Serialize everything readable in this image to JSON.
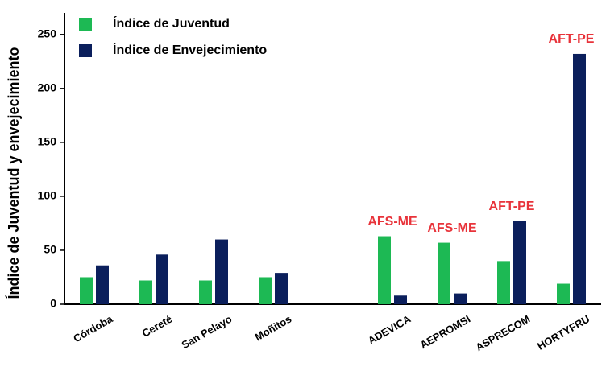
{
  "chart_data": {
    "type": "bar",
    "y_label": "Índice de Juventud y envejecimiento",
    "categories": [
      "Córdoba",
      "Cereté",
      "San Pelayo",
      "Moñitos",
      null,
      "ADEVICA",
      "AEPROMSI",
      "ASPRECOM",
      "HORTYFRU"
    ],
    "series": [
      {
        "name": "Índice de Juventud",
        "color": "#1db954",
        "values": [
          25,
          22,
          22,
          25,
          null,
          63,
          57,
          40,
          19
        ]
      },
      {
        "name": "Índice de Envejecimiento",
        "color": "#0b1f5c",
        "values": [
          36,
          46,
          60,
          29,
          null,
          8,
          10,
          77,
          232
        ]
      }
    ],
    "annotations": [
      null,
      null,
      null,
      null,
      null,
      "AFS-ME",
      "AFS-ME",
      "AFT-PE",
      "AFT-PE"
    ],
    "annotation_color": "#e8333a",
    "ylim": [
      0,
      270
    ],
    "yticks": [
      0,
      50,
      100,
      150,
      200,
      250
    ],
    "grid": false
  }
}
